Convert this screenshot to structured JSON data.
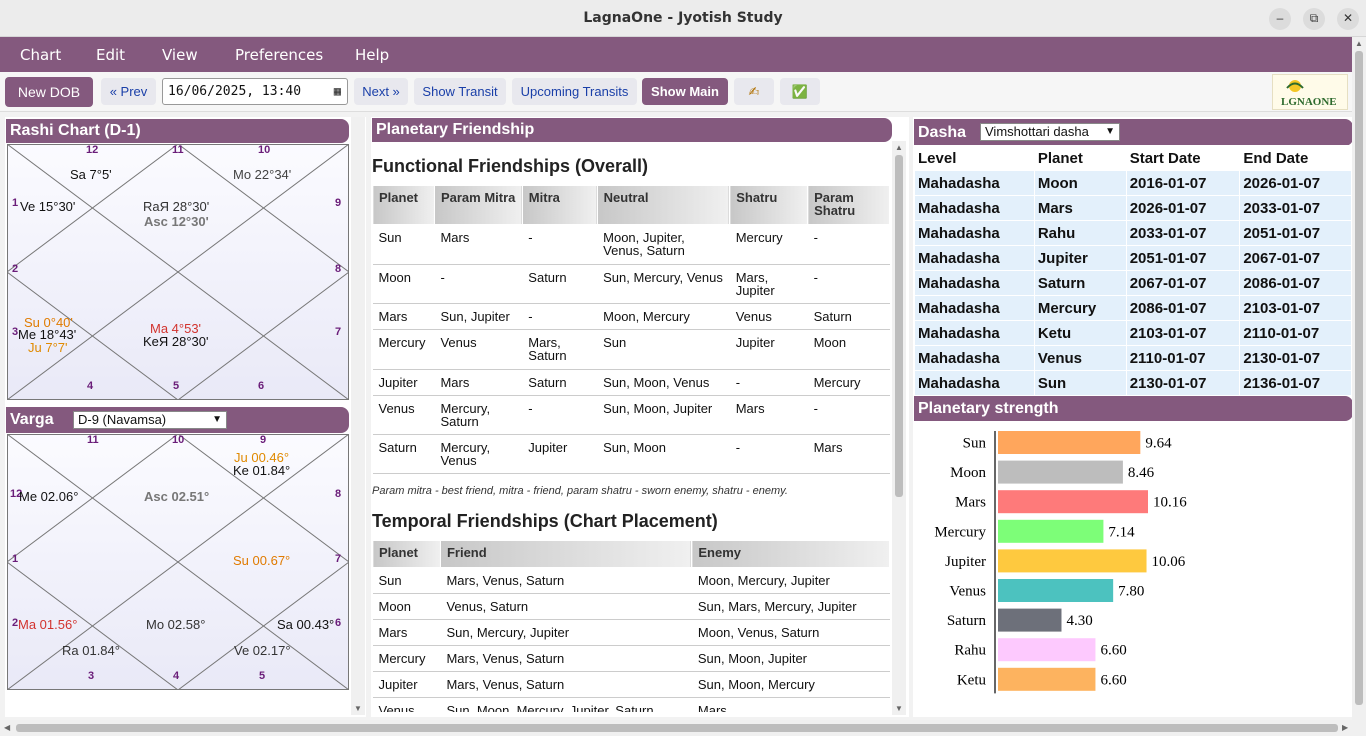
{
  "window": {
    "title": "LagnaOne - Jyotish Study",
    "minimize": "–",
    "maximize": "⧉",
    "close": "✕"
  },
  "menu": [
    "Chart",
    "Edit",
    "View",
    "Preferences",
    "Help"
  ],
  "toolbar": {
    "new_dob": "New DOB",
    "prev": "« Prev",
    "datetime": "16/06/2025, 13:40",
    "next": "Next »",
    "show_transit": "Show Transit",
    "upcoming_transits": "Upcoming Transits",
    "show_main": "Show Main",
    "icon1": "✍",
    "icon2": "✅",
    "logo": "LGNAONE"
  },
  "rashi": {
    "title": "Rashi Chart (D-1)",
    "houses": [
      "12",
      "11",
      "10",
      "1",
      "9",
      "2",
      "8",
      "3",
      "7",
      "4",
      "5",
      "6"
    ],
    "h12": "Sa 7°5'",
    "h10": "Mo 22°34'",
    "h1": "Ve 15°30'",
    "center_top_1": "RaЯ 28°30'",
    "center_top_2": "Asc 12°30'",
    "h3_su": "Su 0°40'",
    "h3_me": "Me 18°43'",
    "h3_ju": "Ju 7°7'",
    "center_bot_1": "Ma 4°53'",
    "center_bot_2": "KeЯ 28°30'"
  },
  "varga": {
    "title": "Varga",
    "selected": "D-9 (Navamsa)",
    "houses": [
      "11",
      "10",
      "9",
      "12",
      "8",
      "1",
      "7",
      "2",
      "6",
      "3",
      "4",
      "5"
    ],
    "h9_ju": "Ju 00.46°",
    "h9_ke": "Ke 01.84°",
    "h12": "Me 02.06°",
    "center_top": "Asc 02.51°",
    "h7": "Su 00.67°",
    "h2": "Ma 01.56°",
    "center_bot": "Mo 02.58°",
    "h6": "Sa 00.43°",
    "h3": "Ra 01.84°",
    "h5": "Ve 02.17°"
  },
  "friendship": {
    "title": "Planetary Friendship",
    "functional_heading": "Functional Friendships (Overall)",
    "functional_columns": [
      "Planet",
      "Param Mitra",
      "Mitra",
      "Neutral",
      "Shatru",
      "Param Shatru"
    ],
    "functional_rows": [
      [
        "Sun",
        "Mars",
        "-",
        "Moon, Jupiter, Venus, Saturn",
        "Mercury",
        "-"
      ],
      [
        "Moon",
        "-",
        "Saturn",
        "Sun, Mercury, Venus",
        "Mars, Jupiter",
        "-"
      ],
      [
        "Mars",
        "Sun, Jupiter",
        "-",
        "Moon, Mercury",
        "Venus",
        "Saturn"
      ],
      [
        "Mercury",
        "Venus",
        "Mars, Saturn",
        "Sun",
        "Jupiter",
        "Moon"
      ],
      [
        "Jupiter",
        "Mars",
        "Saturn",
        "Sun, Moon, Venus",
        "-",
        "Mercury"
      ],
      [
        "Venus",
        "Mercury, Saturn",
        "-",
        "Sun, Moon, Jupiter",
        "Mars",
        "-"
      ],
      [
        "Saturn",
        "Mercury, Venus",
        "Jupiter",
        "Sun, Moon",
        "-",
        "Mars"
      ]
    ],
    "note": "Param mitra - best friend, mitra - friend, param shatru - sworn enemy, shatru - enemy.",
    "temporal_heading": "Temporal Friendships (Chart Placement)",
    "temporal_columns": [
      "Planet",
      "Friend",
      "Enemy"
    ],
    "temporal_rows": [
      [
        "Sun",
        "Mars, Venus, Saturn",
        "Moon, Mercury, Jupiter"
      ],
      [
        "Moon",
        "Venus, Saturn",
        "Sun, Mars, Mercury, Jupiter"
      ],
      [
        "Mars",
        "Sun, Mercury, Jupiter",
        "Moon, Venus, Saturn"
      ],
      [
        "Mercury",
        "Mars, Venus, Saturn",
        "Sun, Moon, Jupiter"
      ],
      [
        "Jupiter",
        "Mars, Venus, Saturn",
        "Sun, Moon, Mercury"
      ],
      [
        "Venus",
        "Sun, Moon, Mercury, Jupiter, Saturn",
        "Mars"
      ]
    ]
  },
  "dasha": {
    "title": "Dasha",
    "selected": "Vimshottari dasha",
    "columns": [
      "Level",
      "Planet",
      "Start Date",
      "End Date"
    ],
    "rows": [
      [
        "Mahadasha",
        "Moon",
        "2016-01-07",
        "2026-01-07"
      ],
      [
        "Mahadasha",
        "Mars",
        "2026-01-07",
        "2033-01-07"
      ],
      [
        "Mahadasha",
        "Rahu",
        "2033-01-07",
        "2051-01-07"
      ],
      [
        "Mahadasha",
        "Jupiter",
        "2051-01-07",
        "2067-01-07"
      ],
      [
        "Mahadasha",
        "Saturn",
        "2067-01-07",
        "2086-01-07"
      ],
      [
        "Mahadasha",
        "Mercury",
        "2086-01-07",
        "2103-01-07"
      ],
      [
        "Mahadasha",
        "Ketu",
        "2103-01-07",
        "2110-01-07"
      ],
      [
        "Mahadasha",
        "Venus",
        "2110-01-07",
        "2130-01-07"
      ],
      [
        "Mahadasha",
        "Sun",
        "2130-01-07",
        "2136-01-07"
      ]
    ]
  },
  "chart_data": {
    "type": "bar",
    "title": "Planetary strength",
    "orientation": "horizontal",
    "categories": [
      "Sun",
      "Moon",
      "Mars",
      "Mercury",
      "Jupiter",
      "Venus",
      "Saturn",
      "Rahu",
      "Ketu"
    ],
    "values": [
      9.64,
      8.46,
      10.16,
      7.14,
      10.06,
      7.8,
      4.3,
      6.6,
      6.6
    ],
    "labels": [
      "9.64",
      "8.46",
      "10.16",
      "7.14",
      "10.06",
      "7.80",
      "4.30",
      "6.60",
      "6.60"
    ],
    "colors": [
      "#ffa65c",
      "#bdbdbd",
      "#fe7a7a",
      "#7dfe78",
      "#fec93f",
      "#4cc2bf",
      "#6d707a",
      "#fdc9fe",
      "#fdb35f"
    ],
    "xlim": [
      0,
      10.5
    ],
    "grid": false
  }
}
